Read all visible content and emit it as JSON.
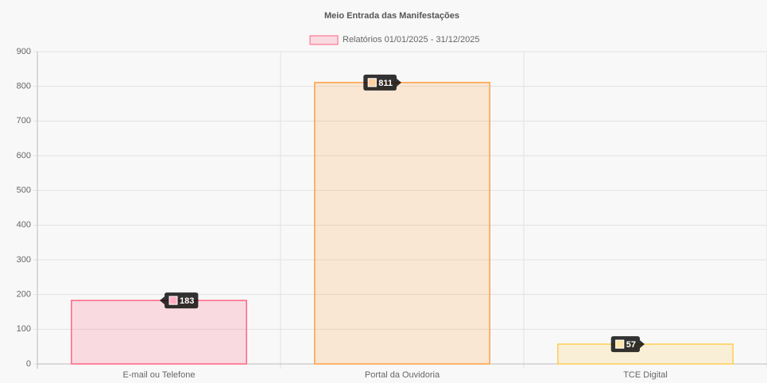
{
  "chart_data": {
    "type": "bar",
    "title": "Meio Entrada das Manifestações",
    "categories": [
      "E-mail ou Telefone",
      "Portal da Ouvidoria",
      "TCE Digital"
    ],
    "series": [
      {
        "name": "Relatórios 01/01/2025 - 31/12/2025",
        "values": [
          183,
          811,
          57
        ],
        "colors": [
          "rgba(255,99,132,0.2)",
          "rgba(255,159,64,0.2)",
          "rgba(255,205,86,0.2)"
        ],
        "border_colors": [
          "rgb(255,99,132)",
          "rgb(255,159,64)",
          "rgb(255,205,86)"
        ]
      }
    ],
    "ylim": [
      0,
      900
    ],
    "yticks": [
      0,
      100,
      200,
      300,
      400,
      500,
      600,
      700,
      800,
      900
    ],
    "grid": true,
    "legend": "top"
  }
}
